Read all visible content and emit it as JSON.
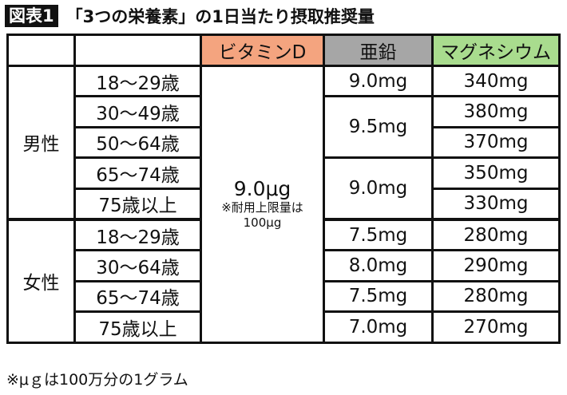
{
  "title": {
    "badge": "図表1",
    "text": "「3つの栄養素」の1日当たり摂取推奨量"
  },
  "headers": {
    "vitamin_d": "ビタミンD",
    "zinc": "亜鉛",
    "magnesium": "マグネシウム"
  },
  "colors": {
    "vitamin_d": "#f4a47f",
    "zinc": "#a6a6a6",
    "magnesium": "#a9dc8e"
  },
  "groups": {
    "male": "男性",
    "female": "女性"
  },
  "ages": [
    "18〜29歳",
    "30〜49歳",
    "50〜64歳",
    "65〜74歳",
    "75歳以上",
    "18〜29歳",
    "30〜64歳",
    "65〜74歳",
    "75歳以上"
  ],
  "vitamin_d": {
    "value": "9.0μg",
    "note1": "※耐用上限量は",
    "note2": "100μg"
  },
  "zinc": [
    "9.0mg",
    "9.5mg",
    "9.0mg",
    "7.5mg",
    "8.0mg",
    "7.5mg",
    "7.0mg"
  ],
  "magnesium": [
    "340mg",
    "380mg",
    "370mg",
    "350mg",
    "330mg",
    "280mg",
    "290mg",
    "280mg",
    "270mg"
  ],
  "footnote": "※μｇは100万分の1グラム"
}
